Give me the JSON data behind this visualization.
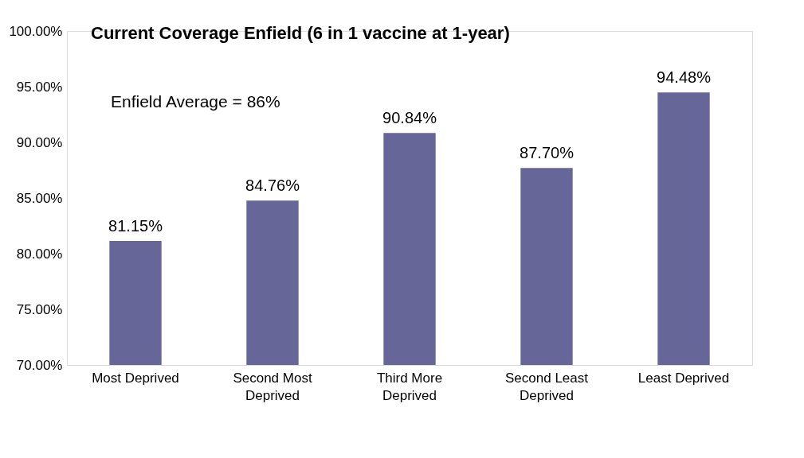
{
  "chart_data": {
    "type": "bar",
    "title": "Current Coverage Enfield (6 in 1 vaccine at 1-year)",
    "categories": [
      "Most Deprived",
      "Second Most Deprived",
      "Third More Deprived",
      "Second Least Deprived",
      "Least Deprived"
    ],
    "values": [
      81.15,
      84.76,
      90.84,
      87.7,
      94.48
    ],
    "value_labels": [
      "81.15%",
      "84.76%",
      "90.84%",
      "87.70%",
      "94.48%"
    ],
    "color": "#666699",
    "ylim": [
      70,
      100
    ],
    "yticks": [
      {
        "value": 70,
        "label": "70.00%"
      },
      {
        "value": 75,
        "label": "75.00%"
      },
      {
        "value": 80,
        "label": "80.00%"
      },
      {
        "value": 85,
        "label": "85.00%"
      },
      {
        "value": 90,
        "label": "90.00%"
      },
      {
        "value": 95,
        "label": "95.00%"
      },
      {
        "value": 100,
        "label": "100.00%"
      }
    ],
    "annotations": [
      "Enfield Average = 86%"
    ],
    "grid": false
  }
}
